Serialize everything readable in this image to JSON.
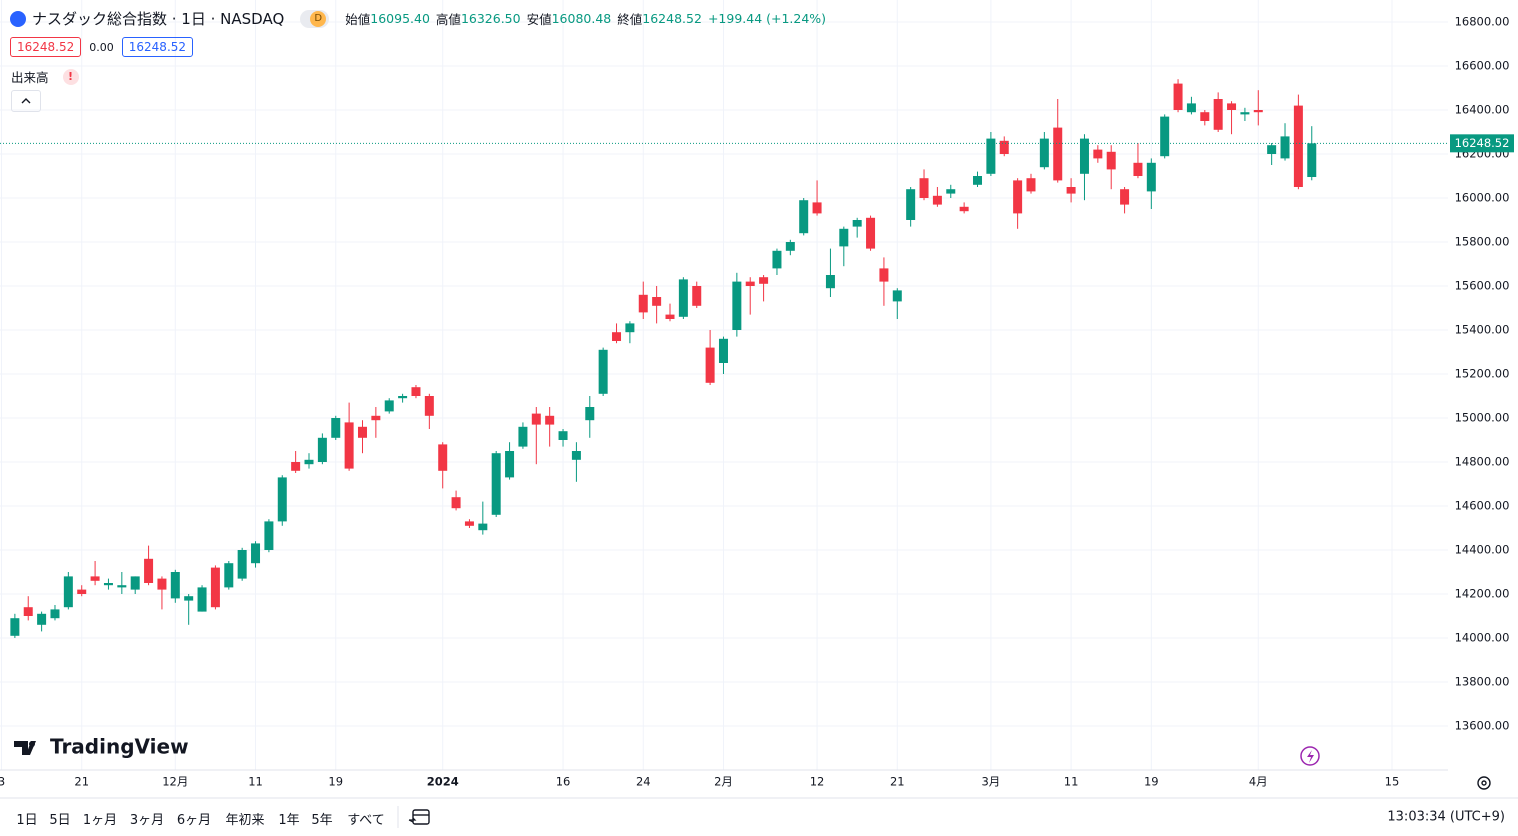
{
  "header": {
    "title": "ナスダック総合指数 · 1日 · NASDAQ",
    "interval_badge": "D",
    "open_label": "始値",
    "open": "16095.40",
    "high_label": "高値",
    "high": "16326.50",
    "low_label": "安値",
    "low": "16080.48",
    "close_label": "終値",
    "close": "16248.52",
    "change": "+199.44 (+1.24%)",
    "bid": "16248.52",
    "spread": "0.00",
    "ask": "16248.52",
    "volume_label": "出来高",
    "volume_alert": "!"
  },
  "brand": "TradingView",
  "range_buttons": [
    "1日",
    "5日",
    "1ヶ月",
    "3ヶ月",
    "6ヶ月",
    "年初来",
    "1年",
    "5年",
    "すべて"
  ],
  "clock": "13:03:34 (UTC+9)",
  "chart_data": {
    "type": "candlestick",
    "categories": [
      "3",
      null,
      null,
      null,
      null,
      null,
      "21",
      null,
      null,
      null,
      null,
      null,
      null,
      "12月",
      null,
      null,
      null,
      null,
      null,
      "11",
      null,
      null,
      null,
      null,
      null,
      "19",
      null,
      null,
      null,
      null,
      null,
      null,
      null,
      "2024",
      null,
      null,
      null,
      null,
      null,
      null,
      null,
      null,
      "16",
      null,
      null,
      null,
      null,
      null,
      "24",
      null,
      null,
      null,
      null,
      null,
      "2月",
      null,
      null,
      null,
      null,
      null,
      null,
      "12",
      null,
      null,
      null,
      null,
      null,
      "21",
      null,
      null,
      null,
      null,
      null,
      null,
      "3月",
      null,
      null,
      null,
      null,
      null,
      "11",
      null,
      null,
      null,
      null,
      null,
      "19",
      null,
      null,
      null,
      null,
      null,
      null,
      null,
      "4月",
      null,
      null,
      null,
      null,
      null,
      null,
      null,
      null,
      null,
      "15"
    ],
    "open": [
      null,
      14010,
      14140,
      14060,
      14090,
      14140,
      14220,
      14280,
      14240,
      14230,
      14220,
      14360,
      14270,
      14180,
      14170,
      14120,
      14320,
      14230,
      14270,
      14340,
      14400,
      14530,
      14800,
      14790,
      14800,
      14910,
      14980,
      14960,
      15010,
      15030,
      15090,
      15140,
      15100,
      14880,
      14640,
      14530,
      14490,
      14560,
      14730,
      14870,
      15020,
      15010,
      14900,
      14810,
      14990,
      15110,
      15390,
      15390,
      15560,
      15550,
      15470,
      15460,
      15600,
      15320,
      15250,
      15400,
      15620,
      15640,
      15680,
      15760,
      15840,
      15980,
      15590,
      15780,
      15870,
      15910,
      15680,
      15530,
      15900,
      16090,
      16010,
      16020,
      15960,
      16060,
      16110,
      16260,
      16080,
      16090,
      16140,
      16320,
      16050,
      16110,
      16220,
      16210,
      16040,
      16160,
      16030,
      16190,
      16520,
      16390,
      16390,
      16450,
      16430,
      16380,
      16400,
      16200,
      16180,
      16420,
      16095.4,
      null,
      null,
      null,
      null,
      null,
      null
    ],
    "high": [
      null,
      14110,
      14190,
      14120,
      14150,
      14300,
      14240,
      14350,
      14270,
      14300,
      14280,
      14420,
      14280,
      14310,
      14200,
      14240,
      14330,
      14350,
      14410,
      14440,
      14540,
      14740,
      14850,
      14840,
      14930,
      15010,
      15070,
      14990,
      15050,
      15090,
      15110,
      15150,
      15110,
      14890,
      14670,
      14540,
      14620,
      14850,
      14890,
      14980,
      15050,
      15050,
      14950,
      14890,
      15100,
      15320,
      15430,
      15440,
      15620,
      15600,
      15520,
      15640,
      15620,
      15400,
      15370,
      15660,
      15640,
      15650,
      15770,
      15810,
      16000,
      16080,
      15770,
      15870,
      15910,
      15920,
      15730,
      15590,
      16050,
      16130,
      16050,
      16060,
      15980,
      16120,
      16300,
      16280,
      16090,
      16110,
      16300,
      16450,
      16090,
      16290,
      16240,
      16240,
      16050,
      16250,
      16180,
      16380,
      16540,
      16460,
      16400,
      16480,
      16440,
      16410,
      16490,
      16250,
      16340,
      16470,
      16326.5,
      null,
      null,
      null,
      null,
      null,
      null
    ],
    "low": [
      null,
      14000,
      14080,
      14030,
      14080,
      14130,
      14190,
      14240,
      14220,
      14200,
      14200,
      14240,
      14130,
      14160,
      14060,
      14120,
      14130,
      14220,
      14260,
      14320,
      14390,
      14510,
      14750,
      14770,
      14790,
      14900,
      14760,
      14840,
      14910,
      15020,
      15070,
      15090,
      14950,
      14680,
      14580,
      14500,
      14470,
      14550,
      14720,
      14860,
      14790,
      14870,
      14870,
      14710,
      14910,
      15100,
      15340,
      15340,
      15450,
      15430,
      15440,
      15450,
      15500,
      15150,
      15200,
      15370,
      15470,
      15530,
      15650,
      15740,
      15830,
      15920,
      15550,
      15690,
      15820,
      15760,
      15510,
      15450,
      15870,
      15990,
      15960,
      16000,
      15930,
      16050,
      16100,
      16190,
      15860,
      16020,
      16130,
      16070,
      15980,
      15990,
      16160,
      16040,
      15930,
      16090,
      15950,
      16180,
      16390,
      16380,
      16330,
      16300,
      16290,
      16350,
      16330,
      16150,
      16170,
      16040,
      16080.48,
      null,
      null,
      null,
      null,
      null,
      null
    ],
    "close": [
      null,
      14090,
      14100,
      14110,
      14130,
      14280,
      14200,
      14260,
      14250,
      14240,
      14280,
      14250,
      14220,
      14300,
      14190,
      14230,
      14140,
      14340,
      14400,
      14430,
      14530,
      14730,
      14760,
      14810,
      14910,
      15000,
      14770,
      14910,
      14990,
      15080,
      15100,
      15100,
      15010,
      14760,
      14590,
      14510,
      14520,
      14840,
      14850,
      14960,
      14970,
      14970,
      14940,
      14850,
      15050,
      15310,
      15350,
      15430,
      15480,
      15510,
      15450,
      15630,
      15510,
      15160,
      15360,
      15620,
      15600,
      15610,
      15760,
      15800,
      15990,
      15930,
      15650,
      15860,
      15900,
      15770,
      15620,
      15580,
      16040,
      16000,
      15970,
      16040,
      15940,
      16100,
      16270,
      16200,
      15930,
      16030,
      16270,
      16080,
      16020,
      16270,
      16180,
      16130,
      15970,
      16100,
      16160,
      16370,
      16400,
      16430,
      16350,
      16310,
      16400,
      16390,
      16390,
      16240,
      16280,
      16050,
      16248.52,
      null,
      null,
      null,
      null,
      null,
      null
    ],
    "up_color": "#089981",
    "down_color": "#f23645",
    "ylim": [
      13400,
      16900
    ],
    "yticks": [
      {
        "value": 13600,
        "label": "13600.00"
      },
      {
        "value": 13800,
        "label": "13800.00"
      },
      {
        "value": 14000,
        "label": "14000.00"
      },
      {
        "value": 14200,
        "label": "14200.00"
      },
      {
        "value": 14400,
        "label": "14400.00"
      },
      {
        "value": 14600,
        "label": "14600.00"
      },
      {
        "value": 14800,
        "label": "14800.00"
      },
      {
        "value": 15000,
        "label": "15000.00"
      },
      {
        "value": 15200,
        "label": "15200.00"
      },
      {
        "value": 15400,
        "label": "15400.00"
      },
      {
        "value": 15600,
        "label": "15600.00"
      },
      {
        "value": 15800,
        "label": "15800.00"
      },
      {
        "value": 16000,
        "label": "16000.00"
      },
      {
        "value": 16200,
        "label": "16200.00"
      },
      {
        "value": 16400,
        "label": "16400.00"
      },
      {
        "value": 16600,
        "label": "16600.00"
      },
      {
        "value": 16800,
        "label": "16800.00"
      }
    ],
    "grid": true
  }
}
